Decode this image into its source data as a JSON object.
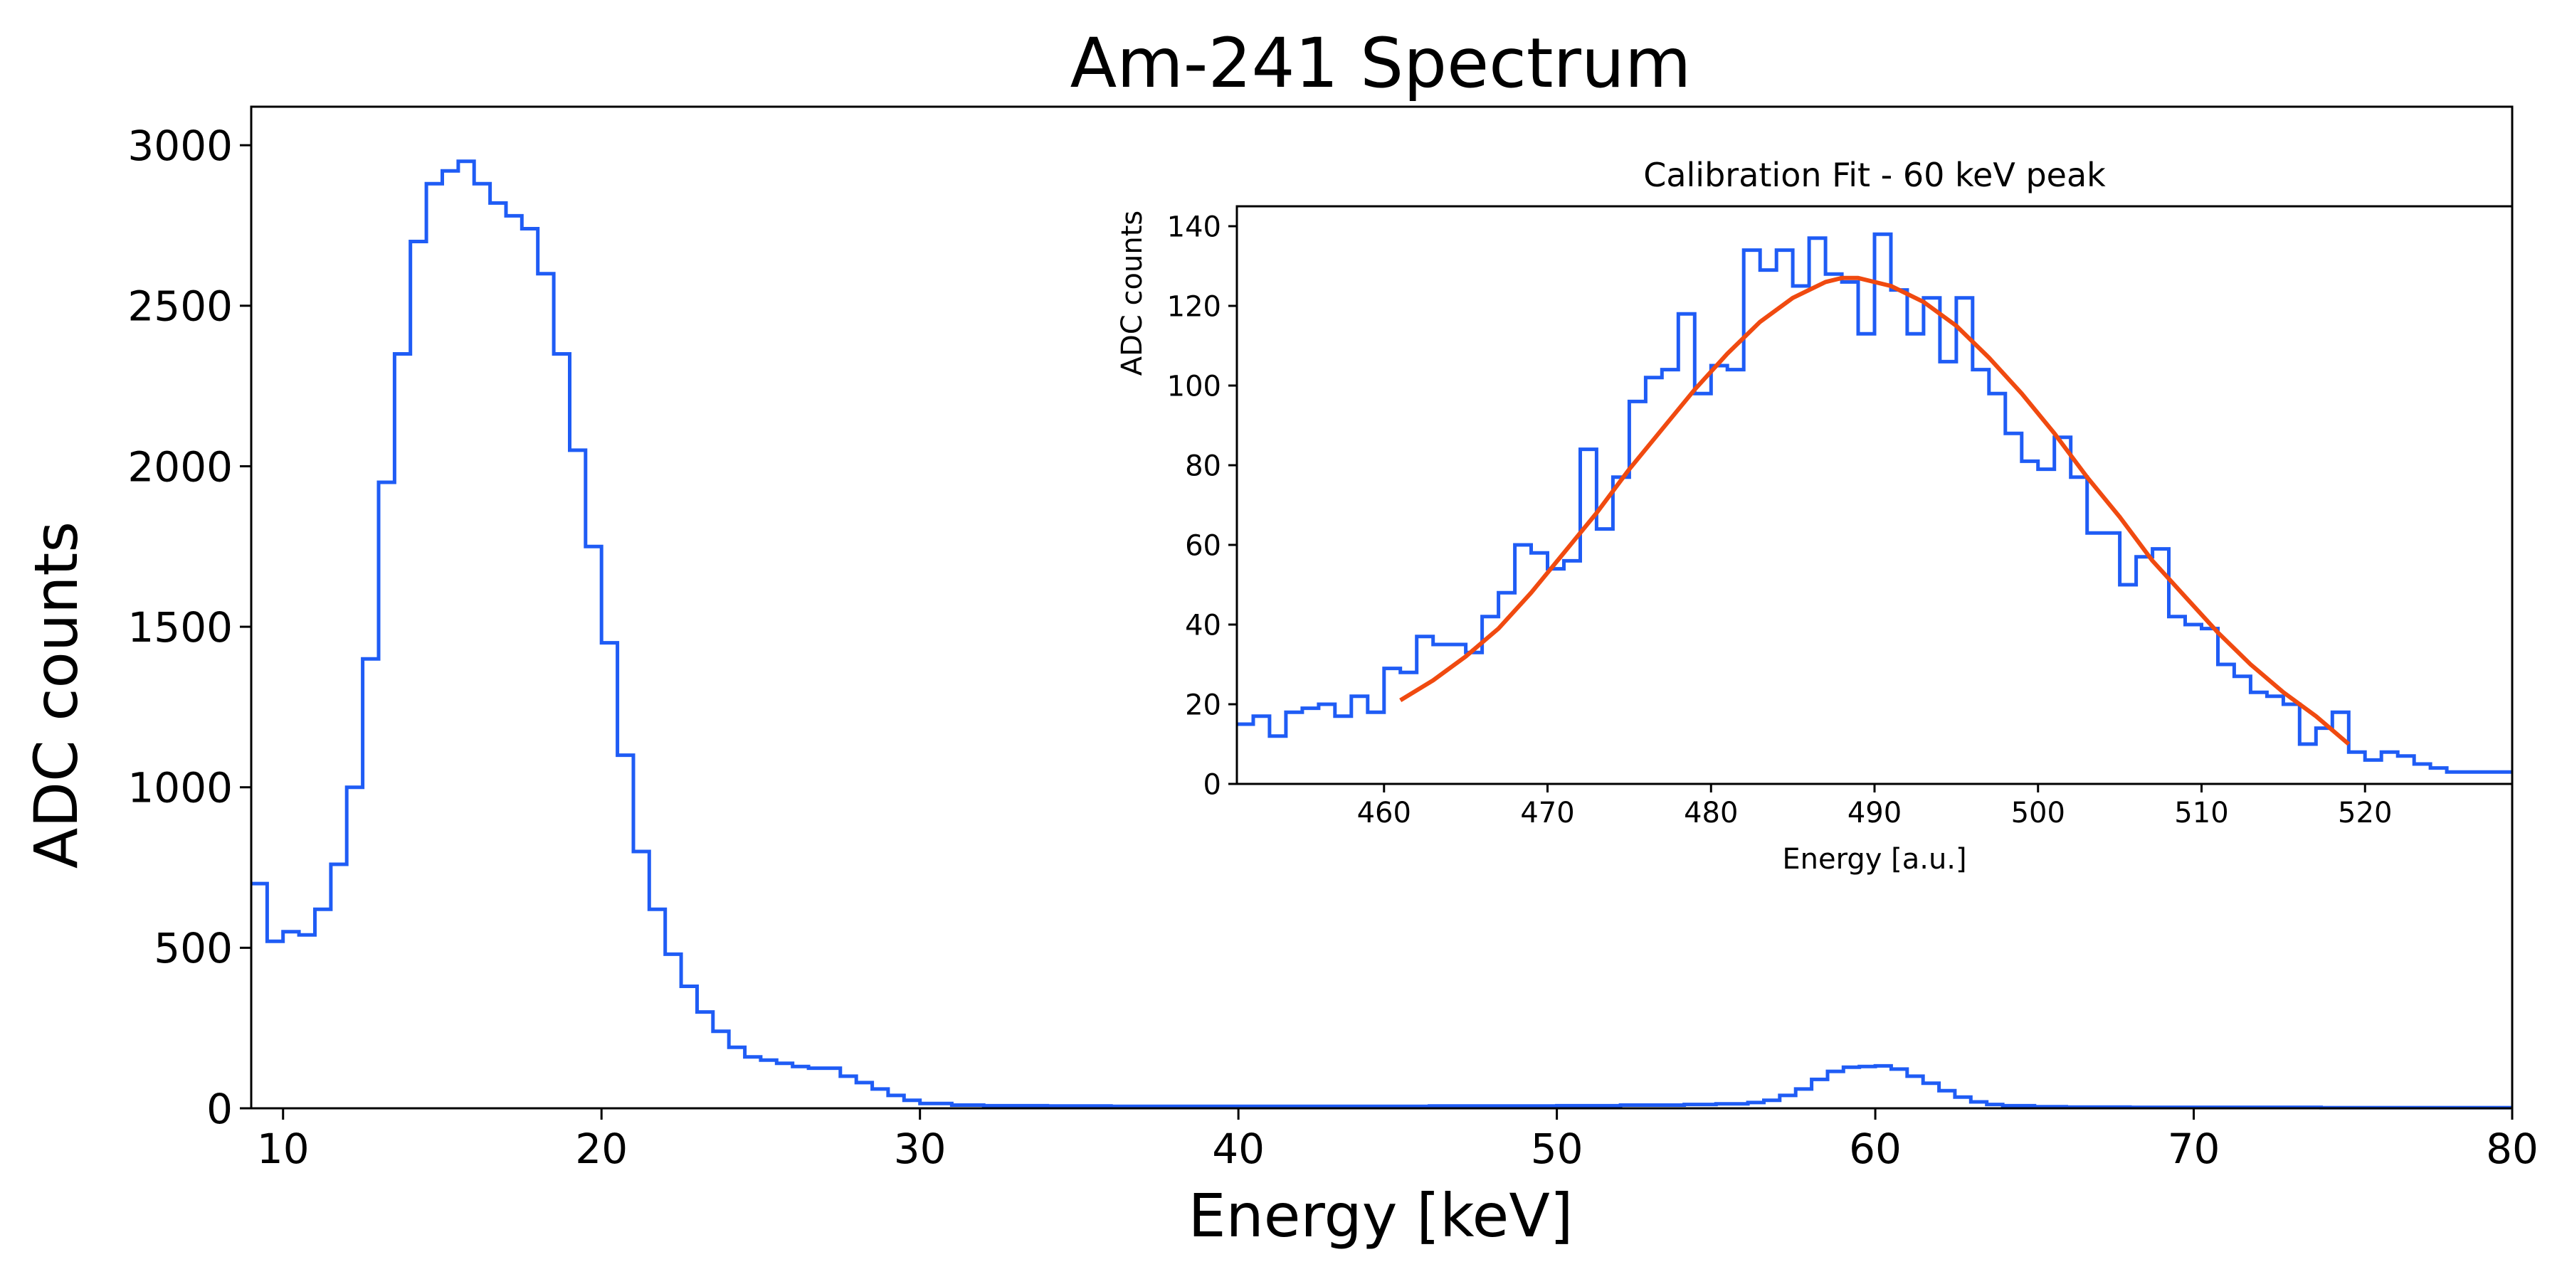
{
  "chart_data": [
    {
      "type": "line",
      "title": "Am-241 Spectrum",
      "xlabel": "Energy [keV]",
      "ylabel": "ADC counts",
      "xlim": [
        9,
        80
      ],
      "ylim": [
        0,
        3120
      ],
      "xticks": [
        10,
        20,
        30,
        40,
        50,
        60,
        70,
        80
      ],
      "yticks": [
        0,
        500,
        1000,
        1500,
        2000,
        2500,
        3000
      ],
      "grid": false,
      "step": true,
      "series": [
        {
          "color": "#1f5cf5",
          "x": [
            9.0,
            9.5,
            10.0,
            10.5,
            11.0,
            11.5,
            12.0,
            12.5,
            13.0,
            13.5,
            14.0,
            14.5,
            15.0,
            15.5,
            16.0,
            16.5,
            17.0,
            17.5,
            18.0,
            18.5,
            19.0,
            19.5,
            20.0,
            20.5,
            21.0,
            21.5,
            22.0,
            22.5,
            23.0,
            23.5,
            24.0,
            24.5,
            25.0,
            25.5,
            26.0,
            26.5,
            27.0,
            27.5,
            28.0,
            28.5,
            29.0,
            29.5,
            30.0,
            31.0,
            32.0,
            34.0,
            36.0,
            38.0,
            40.0,
            42.0,
            44.0,
            46.0,
            48.0,
            50.0,
            52.0,
            54.0,
            55.0,
            56.0,
            56.5,
            57.0,
            57.5,
            58.0,
            58.5,
            59.0,
            59.5,
            60.0,
            60.5,
            61.0,
            61.5,
            62.0,
            62.5,
            63.0,
            63.5,
            64.0,
            65.0,
            66.0,
            68.0,
            70.0,
            72.0,
            74.0,
            76.0,
            78.0,
            80.0
          ],
          "y": [
            700,
            520,
            550,
            540,
            620,
            760,
            1000,
            1400,
            1950,
            2350,
            2700,
            2880,
            2920,
            2950,
            2880,
            2820,
            2780,
            2740,
            2600,
            2350,
            2050,
            1750,
            1450,
            1100,
            800,
            620,
            480,
            380,
            300,
            240,
            190,
            160,
            150,
            140,
            130,
            125,
            125,
            100,
            80,
            60,
            40,
            25,
            15,
            10,
            8,
            7,
            6,
            6,
            6,
            6,
            6,
            7,
            7,
            8,
            10,
            12,
            14,
            18,
            25,
            40,
            60,
            90,
            115,
            128,
            130,
            132,
            122,
            100,
            78,
            55,
            35,
            20,
            12,
            8,
            5,
            4,
            3,
            3,
            3,
            2,
            2,
            2,
            2
          ]
        }
      ]
    },
    {
      "type": "line",
      "title": "Calibration Fit - 60 keV peak",
      "xlabel": "Energy [a.u.]",
      "ylabel": "ADC counts",
      "xlim": [
        451,
        529
      ],
      "ylim": [
        0,
        145
      ],
      "xticks": [
        460,
        470,
        480,
        490,
        500,
        510,
        520
      ],
      "yticks": [
        0,
        20,
        40,
        60,
        80,
        100,
        120,
        140
      ],
      "grid": false,
      "series": [
        {
          "kind": "histogram",
          "color": "#1f5cf5",
          "x": [
            451,
            452,
            453,
            454,
            455,
            456,
            457,
            458,
            459,
            460,
            461,
            462,
            463,
            464,
            465,
            466,
            467,
            468,
            469,
            470,
            471,
            472,
            473,
            474,
            475,
            476,
            477,
            478,
            479,
            480,
            481,
            482,
            483,
            484,
            485,
            486,
            487,
            488,
            489,
            490,
            491,
            492,
            493,
            494,
            495,
            496,
            497,
            498,
            499,
            500,
            501,
            502,
            503,
            504,
            505,
            506,
            507,
            508,
            509,
            510,
            511,
            512,
            513,
            514,
            515,
            516,
            517,
            518,
            519,
            520,
            521,
            522,
            523,
            524,
            525,
            526,
            527,
            528
          ],
          "y": [
            15,
            17,
            12,
            18,
            19,
            20,
            17,
            22,
            18,
            29,
            28,
            37,
            35,
            35,
            33,
            42,
            48,
            60,
            58,
            54,
            56,
            84,
            64,
            77,
            96,
            102,
            104,
            118,
            98,
            105,
            104,
            134,
            129,
            134,
            125,
            137,
            128,
            126,
            113,
            138,
            124,
            113,
            122,
            106,
            122,
            104,
            98,
            88,
            81,
            79,
            87,
            77,
            63,
            63,
            50,
            57,
            59,
            42,
            40,
            39,
            30,
            27,
            23,
            22,
            20,
            10,
            14,
            18,
            8,
            6,
            8,
            7,
            5,
            4,
            3,
            3,
            3,
            3
          ]
        },
        {
          "kind": "fit",
          "color": "#f04a10",
          "x": [
            461,
            463,
            465,
            467,
            469,
            471,
            473,
            475,
            477,
            479,
            481,
            483,
            485,
            487,
            488,
            489,
            491,
            493,
            495,
            497,
            499,
            501,
            503,
            505,
            507,
            509,
            511,
            513,
            515,
            517,
            519
          ],
          "y": [
            21,
            26,
            32,
            39,
            48,
            58,
            68,
            79,
            89,
            99,
            108,
            116,
            122,
            126,
            127,
            127,
            125,
            121,
            115,
            107,
            98,
            88,
            77,
            67,
            56,
            47,
            38,
            30,
            23,
            17,
            10
          ]
        }
      ]
    }
  ]
}
